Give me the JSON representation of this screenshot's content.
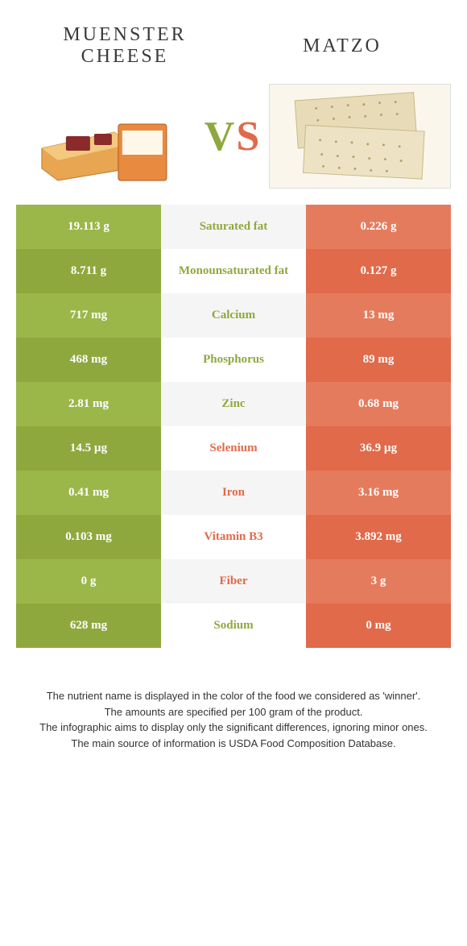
{
  "header": {
    "left_title": "Muenster cheese",
    "right_title": "Matzo",
    "vs_v": "V",
    "vs_s": "S"
  },
  "colors": {
    "green_dark": "#8fa83e",
    "green_light": "#9bb74a",
    "orange_dark": "#e06a4a",
    "orange_light": "#e57b5d",
    "mid_alt": "#f5f5f5",
    "text": "#333333"
  },
  "rows": [
    {
      "left": "19.113 g",
      "label": "Saturated fat",
      "right": "0.226 g",
      "winner": "green"
    },
    {
      "left": "8.711 g",
      "label": "Monounsaturated fat",
      "right": "0.127 g",
      "winner": "green"
    },
    {
      "left": "717 mg",
      "label": "Calcium",
      "right": "13 mg",
      "winner": "green"
    },
    {
      "left": "468 mg",
      "label": "Phosphorus",
      "right": "89 mg",
      "winner": "green"
    },
    {
      "left": "2.81 mg",
      "label": "Zinc",
      "right": "0.68 mg",
      "winner": "green"
    },
    {
      "left": "14.5 µg",
      "label": "Selenium",
      "right": "36.9 µg",
      "winner": "orange"
    },
    {
      "left": "0.41 mg",
      "label": "Iron",
      "right": "3.16 mg",
      "winner": "orange"
    },
    {
      "left": "0.103 mg",
      "label": "Vitamin B3",
      "right": "3.892 mg",
      "winner": "orange"
    },
    {
      "left": "0 g",
      "label": "Fiber",
      "right": "3 g",
      "winner": "orange"
    },
    {
      "left": "628 mg",
      "label": "Sodium",
      "right": "0 mg",
      "winner": "green"
    }
  ],
  "footer": {
    "line1": "The nutrient name is displayed in the color of the food we considered as 'winner'.",
    "line2": "The amounts are specified per 100 gram of the product.",
    "line3": "The infographic aims to display only the significant differences, ignoring minor ones.",
    "line4": "The main source of information is USDA Food Composition Database."
  }
}
